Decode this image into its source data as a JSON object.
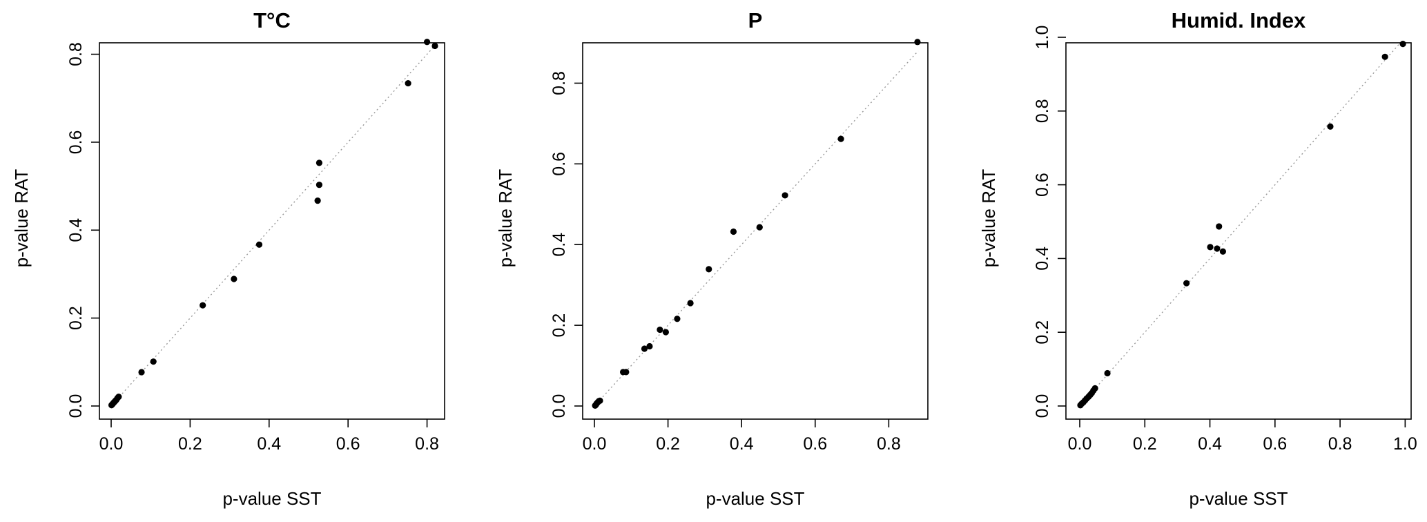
{
  "chart_data": [
    {
      "type": "scatter",
      "title": "T°C",
      "xlabel": "p-value SST",
      "ylabel": "p-value RAT",
      "xlim": [
        0,
        0.82
      ],
      "ylim": [
        0,
        0.826
      ],
      "x_ticks": [
        "0.0",
        "0.2",
        "0.4",
        "0.6",
        "0.8"
      ],
      "y_ticks": [
        "0.0",
        "0.2",
        "0.4",
        "0.6",
        "0.8"
      ],
      "reference_line": "y = x",
      "grid": false,
      "points": [
        {
          "x": 0.001,
          "y": 0.002
        },
        {
          "x": 0.003,
          "y": 0.004
        },
        {
          "x": 0.005,
          "y": 0.006
        },
        {
          "x": 0.007,
          "y": 0.008
        },
        {
          "x": 0.009,
          "y": 0.01
        },
        {
          "x": 0.011,
          "y": 0.012
        },
        {
          "x": 0.013,
          "y": 0.014
        },
        {
          "x": 0.016,
          "y": 0.018
        },
        {
          "x": 0.019,
          "y": 0.021
        },
        {
          "x": 0.077,
          "y": 0.077
        },
        {
          "x": 0.107,
          "y": 0.101
        },
        {
          "x": 0.232,
          "y": 0.229
        },
        {
          "x": 0.311,
          "y": 0.289
        },
        {
          "x": 0.375,
          "y": 0.367
        },
        {
          "x": 0.523,
          "y": 0.467
        },
        {
          "x": 0.527,
          "y": 0.503
        },
        {
          "x": 0.527,
          "y": 0.553
        },
        {
          "x": 0.752,
          "y": 0.734
        },
        {
          "x": 0.8,
          "y": 0.828
        },
        {
          "x": 0.82,
          "y": 0.819
        }
      ]
    },
    {
      "type": "scatter",
      "title": "P",
      "xlabel": "p-value SST",
      "ylabel": "p-value RAT",
      "xlim": [
        0,
        0.88
      ],
      "ylim": [
        0,
        0.9
      ],
      "x_ticks": [
        "0.0",
        "0.2",
        "0.4",
        "0.6",
        "0.8"
      ],
      "y_ticks": [
        "0.0",
        "0.2",
        "0.4",
        "0.6",
        "0.8"
      ],
      "reference_line": "y = x",
      "grid": false,
      "points": [
        {
          "x": 0.002,
          "y": 0.001
        },
        {
          "x": 0.004,
          "y": 0.003
        },
        {
          "x": 0.006,
          "y": 0.006
        },
        {
          "x": 0.009,
          "y": 0.009
        },
        {
          "x": 0.012,
          "y": 0.012
        },
        {
          "x": 0.015,
          "y": 0.013
        },
        {
          "x": 0.078,
          "y": 0.084
        },
        {
          "x": 0.086,
          "y": 0.084
        },
        {
          "x": 0.136,
          "y": 0.142
        },
        {
          "x": 0.15,
          "y": 0.148
        },
        {
          "x": 0.178,
          "y": 0.189
        },
        {
          "x": 0.194,
          "y": 0.183
        },
        {
          "x": 0.225,
          "y": 0.216
        },
        {
          "x": 0.261,
          "y": 0.255
        },
        {
          "x": 0.311,
          "y": 0.339
        },
        {
          "x": 0.378,
          "y": 0.432
        },
        {
          "x": 0.449,
          "y": 0.443
        },
        {
          "x": 0.518,
          "y": 0.522
        },
        {
          "x": 0.67,
          "y": 0.662
        },
        {
          "x": 0.878,
          "y": 0.902
        }
      ]
    },
    {
      "type": "scatter",
      "title": "Humid. Index",
      "xlabel": "p-value SST",
      "ylabel": "p-value RAT",
      "xlim": [
        0,
        0.995
      ],
      "ylim": [
        0,
        0.985
      ],
      "x_ticks": [
        "0.0",
        "0.2",
        "0.4",
        "0.6",
        "0.8",
        "1.0"
      ],
      "y_ticks": [
        "0.0",
        "0.2",
        "0.4",
        "0.6",
        "0.8",
        "1.0"
      ],
      "reference_line": "y = x",
      "grid": false,
      "points": [
        {
          "x": 0.002,
          "y": 0.002
        },
        {
          "x": 0.006,
          "y": 0.006
        },
        {
          "x": 0.011,
          "y": 0.01
        },
        {
          "x": 0.016,
          "y": 0.015
        },
        {
          "x": 0.021,
          "y": 0.02
        },
        {
          "x": 0.027,
          "y": 0.025
        },
        {
          "x": 0.032,
          "y": 0.03
        },
        {
          "x": 0.037,
          "y": 0.035
        },
        {
          "x": 0.042,
          "y": 0.042
        },
        {
          "x": 0.047,
          "y": 0.048
        },
        {
          "x": 0.085,
          "y": 0.089
        },
        {
          "x": 0.328,
          "y": 0.333
        },
        {
          "x": 0.401,
          "y": 0.431
        },
        {
          "x": 0.422,
          "y": 0.427
        },
        {
          "x": 0.428,
          "y": 0.487
        },
        {
          "x": 0.44,
          "y": 0.419
        },
        {
          "x": 0.77,
          "y": 0.758
        },
        {
          "x": 0.938,
          "y": 0.947
        },
        {
          "x": 0.993,
          "y": 0.982
        }
      ]
    }
  ]
}
